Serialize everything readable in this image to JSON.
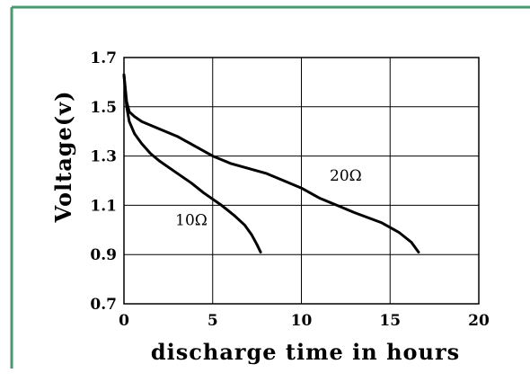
{
  "chart_data": {
    "type": "line",
    "xlabel": "discharge time in hours",
    "ylabel": "Voltage(v)",
    "xlim": [
      0,
      20
    ],
    "ylim": [
      0.7,
      1.7
    ],
    "x_ticks": [
      "0",
      "5",
      "10",
      "15",
      "20"
    ],
    "y_ticks": [
      "0.7",
      "0.9",
      "1.1",
      "1.3",
      "1.5",
      "1.7"
    ],
    "grid": true,
    "series": [
      {
        "name": "10Ω",
        "x": [
          0.0,
          0.15,
          0.3,
          0.6,
          1.0,
          1.5,
          2.0,
          3.0,
          3.8,
          4.5,
          5.5,
          6.2,
          6.8,
          7.2,
          7.5,
          7.7
        ],
        "y": [
          1.63,
          1.5,
          1.44,
          1.39,
          1.35,
          1.31,
          1.28,
          1.23,
          1.19,
          1.15,
          1.1,
          1.06,
          1.02,
          0.98,
          0.94,
          0.91
        ]
      },
      {
        "name": "20Ω",
        "x": [
          0.0,
          0.15,
          0.3,
          0.6,
          1.0,
          2.0,
          3.0,
          4.0,
          5.0,
          6.0,
          7.0,
          8.0,
          9.0,
          10.0,
          11.0,
          12.0,
          13.0,
          14.5,
          15.5,
          16.2,
          16.6
        ],
        "y": [
          1.63,
          1.52,
          1.48,
          1.46,
          1.44,
          1.41,
          1.38,
          1.34,
          1.3,
          1.27,
          1.25,
          1.23,
          1.2,
          1.17,
          1.13,
          1.1,
          1.07,
          1.03,
          0.99,
          0.95,
          0.91
        ]
      }
    ]
  }
}
